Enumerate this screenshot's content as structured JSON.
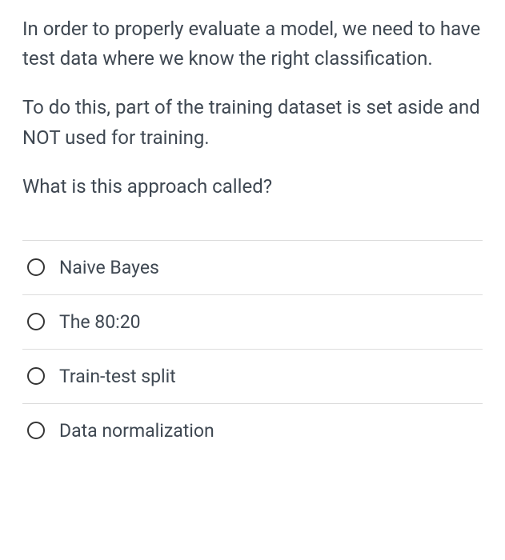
{
  "question": {
    "paragraphs": [
      "In order to properly evaluate a model, we need to have test data where we know the right classification.",
      "To do this, part of the training dataset is set aside and NOT used for training.",
      "What is this approach called?"
    ]
  },
  "options": [
    {
      "label": "Naive Bayes",
      "selected": false
    },
    {
      "label": "The 80:20",
      "selected": false
    },
    {
      "label": "Train-test split",
      "selected": false
    },
    {
      "label": "Data normalization",
      "selected": false
    }
  ],
  "styling": {
    "text_color": "#3f4852",
    "border_color": "#dcdcdc",
    "radio_border_color": "#353535",
    "background_color": "#ffffff",
    "question_fontsize": 24,
    "option_fontsize": 23
  }
}
